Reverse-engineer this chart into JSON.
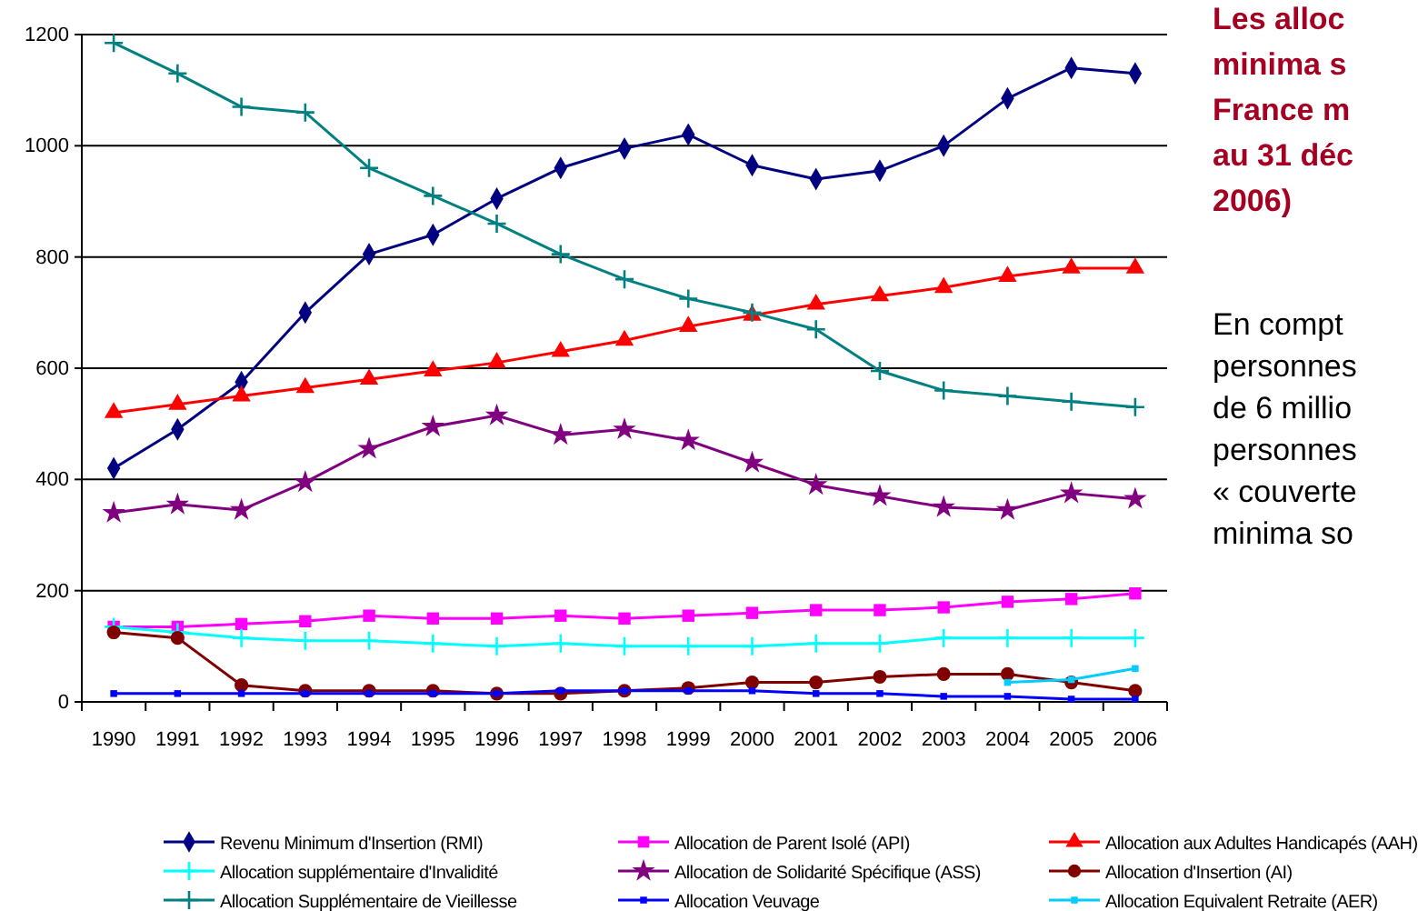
{
  "chart_data": {
    "type": "line",
    "title": "Les alloc\nminima s\nFrance m\nau 31 déc\n2006)",
    "annotations": [
      "En compt\npersonnes\nde 6 millio\npersonnes\n« couverte\nminima so"
    ],
    "categories": [
      "1990",
      "1991",
      "1992",
      "1993",
      "1994",
      "1995",
      "1996",
      "1997",
      "1998",
      "1999",
      "2000",
      "2001",
      "2002",
      "2003",
      "2004",
      "2005",
      "2006"
    ],
    "ylim": [
      0,
      1200
    ],
    "yticks": [
      0,
      200,
      400,
      600,
      800,
      1000,
      1200
    ],
    "grid": "y",
    "legend": "bottom",
    "series": [
      {
        "name": "Revenu Minimum d'Insertion (RMI)",
        "color": "#000080",
        "marker": "diamond",
        "values": [
          420,
          490,
          575,
          700,
          805,
          840,
          905,
          960,
          995,
          1020,
          965,
          940,
          955,
          1000,
          1085,
          1140,
          1130
        ]
      },
      {
        "name": "Allocation de Parent Isolé (API)",
        "color": "#ff00ff",
        "marker": "square",
        "values": [
          135,
          135,
          140,
          145,
          155,
          150,
          150,
          155,
          150,
          155,
          160,
          165,
          165,
          170,
          180,
          185,
          195
        ]
      },
      {
        "name": "Allocation aux Adultes Handicapés (AAH)",
        "color": "#ff0000",
        "marker": "triangle",
        "values": [
          520,
          535,
          550,
          565,
          580,
          595,
          610,
          630,
          650,
          675,
          695,
          715,
          730,
          745,
          765,
          780,
          780
        ]
      },
      {
        "name": "Allocation supplémentaire d'Invalidité",
        "color": "#00ffff",
        "marker": "cross",
        "values": [
          135,
          125,
          115,
          110,
          110,
          105,
          100,
          105,
          100,
          100,
          100,
          105,
          105,
          115,
          115,
          115,
          115
        ]
      },
      {
        "name": "Allocation de Solidarité Spécifique (ASS)",
        "color": "#800080",
        "marker": "star",
        "values": [
          340,
          355,
          345,
          395,
          455,
          495,
          515,
          480,
          490,
          470,
          430,
          390,
          370,
          350,
          345,
          375,
          365
        ]
      },
      {
        "name": "Allocation d'Insertion (AI)",
        "color": "#800000",
        "marker": "circle",
        "values": [
          125,
          115,
          30,
          20,
          20,
          20,
          15,
          15,
          20,
          25,
          35,
          35,
          45,
          50,
          50,
          35,
          20
        ]
      },
      {
        "name": "Allocation Supplémentaire de Vieillesse",
        "color": "#008080",
        "marker": "cross",
        "values": [
          1185,
          1130,
          1070,
          1060,
          960,
          910,
          860,
          805,
          760,
          725,
          700,
          670,
          595,
          560,
          550,
          540,
          530
        ]
      },
      {
        "name": "Allocation Veuvage",
        "color": "#0000ff",
        "marker": "square",
        "values": [
          15,
          15,
          15,
          15,
          15,
          15,
          15,
          20,
          20,
          20,
          20,
          15,
          15,
          10,
          10,
          5,
          5
        ]
      },
      {
        "name": "Allocation Equivalent Retraite (AER)",
        "color": "#00ccff",
        "marker": "square",
        "values": [
          null,
          null,
          null,
          null,
          null,
          null,
          null,
          null,
          null,
          null,
          null,
          null,
          null,
          null,
          35,
          40,
          60
        ]
      }
    ]
  }
}
